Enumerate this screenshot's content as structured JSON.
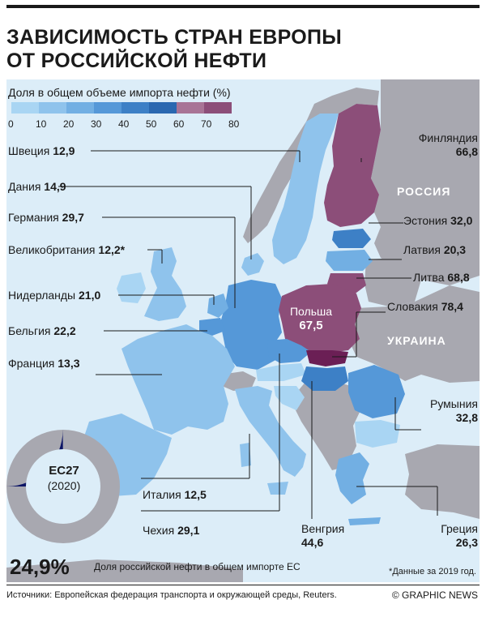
{
  "title": [
    "ЗАВИСИМОСТЬ СТРАН ЕВРОПЫ",
    "ОТ РОССИЙСКОЙ НЕФТИ"
  ],
  "legend": {
    "title": "Доля в общем объеме импорта нефти (%)",
    "ticks": [
      "0",
      "10",
      "20",
      "30",
      "40",
      "50",
      "60",
      "70",
      "80"
    ],
    "colors": [
      "#a9d5f3",
      "#8fc3ec",
      "#72afe3",
      "#5598d8",
      "#3d80c6",
      "#2a68b0",
      "#a87496",
      "#8c4e79",
      "#6b1f55"
    ]
  },
  "countries": [
    {
      "name": "Швеция",
      "value": "12,9"
    },
    {
      "name": "Дания",
      "value": "14,9"
    },
    {
      "name": "Германия",
      "value": "29,7"
    },
    {
      "name": "Великобритания",
      "value": "12,2*"
    },
    {
      "name": "Нидерланды",
      "value": "21,0"
    },
    {
      "name": "Бельгия",
      "value": "22,2"
    },
    {
      "name": "Франция",
      "value": "13,3"
    },
    {
      "name": "Италия",
      "value": "12,5"
    },
    {
      "name": "Чехия",
      "value": "29,1"
    },
    {
      "name": "Финляндия",
      "value": "66,8"
    },
    {
      "name": "Эстония",
      "value": "32,0"
    },
    {
      "name": "Латвия",
      "value": "20,3"
    },
    {
      "name": "Литва",
      "value": "68,8"
    },
    {
      "name": "Польша",
      "value": "67,5"
    },
    {
      "name": "Словакия",
      "value": "78,4"
    },
    {
      "name": "Румыния",
      "value": "32,8"
    },
    {
      "name": "Венгрия",
      "value": "44,6"
    },
    {
      "name": "Греция",
      "value": "26,3"
    }
  ],
  "neighbors": {
    "russia": "РОССИЯ",
    "ukraine": "УКРАИНА"
  },
  "eu": {
    "name": "ЕС27",
    "year": "(2020)",
    "share": 0.249
  },
  "summary": {
    "value": "24,9%",
    "text": "Доля российской нефти в общем импорте ЕС"
  },
  "note": "*Данные за 2019 год.",
  "sources": "Источники: Европейская федерация транспорта и окружающей среды, Reuters.",
  "brand": "© GRAPHIC NEWS",
  "colors": {
    "sea": "#dcedf8",
    "nonEU": "#a8a8b0",
    "donutGray": "#a8a8b0",
    "donutRussia": "#0c1566",
    "donutInner": "#dcedf8"
  }
}
